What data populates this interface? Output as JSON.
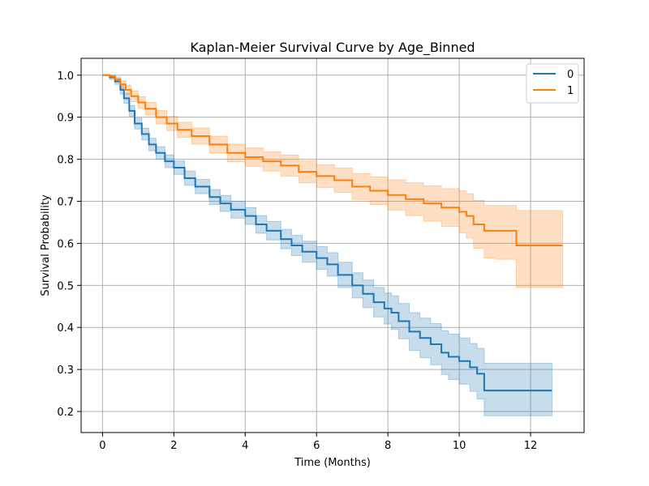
{
  "chart_data": {
    "type": "line",
    "title": "Kaplan-Meier Survival Curve by Age_Binned",
    "xlabel": "Time (Months)",
    "ylabel": "Survival Probability",
    "xlim": [
      -0.6,
      13.5
    ],
    "ylim": [
      0.15,
      1.04
    ],
    "xticks": [
      0,
      2,
      4,
      6,
      8,
      10,
      12
    ],
    "xtick_labels": [
      "0",
      "2",
      "4",
      "6",
      "8",
      "10",
      "12"
    ],
    "yticks": [
      0.2,
      0.3,
      0.4,
      0.5,
      0.6,
      0.7,
      0.8,
      0.9,
      1.0
    ],
    "ytick_labels": [
      "0.2",
      "0.3",
      "0.4",
      "0.5",
      "0.6",
      "0.7",
      "0.8",
      "0.9",
      "1.0"
    ],
    "grid": true,
    "legend_position": "top-right",
    "series": [
      {
        "name": "0",
        "color": "#1f77b4",
        "band_color": "#1f77b4",
        "x": [
          0,
          0.2,
          0.35,
          0.5,
          0.6,
          0.75,
          0.9,
          1.1,
          1.3,
          1.5,
          1.75,
          2.0,
          2.3,
          2.6,
          3.0,
          3.3,
          3.6,
          4.0,
          4.3,
          4.6,
          5.0,
          5.3,
          5.6,
          6.0,
          6.3,
          6.6,
          7.0,
          7.3,
          7.6,
          7.9,
          8.1,
          8.3,
          8.6,
          8.9,
          9.2,
          9.5,
          9.7,
          10.0,
          10.3,
          10.5,
          10.7,
          11.0,
          12.0,
          12.6
        ],
        "y": [
          1.0,
          0.995,
          0.985,
          0.965,
          0.945,
          0.915,
          0.885,
          0.86,
          0.835,
          0.815,
          0.795,
          0.78,
          0.755,
          0.735,
          0.71,
          0.695,
          0.68,
          0.665,
          0.645,
          0.63,
          0.61,
          0.595,
          0.58,
          0.565,
          0.55,
          0.525,
          0.5,
          0.48,
          0.46,
          0.445,
          0.435,
          0.415,
          0.39,
          0.375,
          0.36,
          0.34,
          0.33,
          0.32,
          0.305,
          0.29,
          0.25,
          0.25,
          0.25,
          0.25
        ],
        "lower": [
          1.0,
          0.99,
          0.978,
          0.955,
          0.933,
          0.902,
          0.872,
          0.846,
          0.82,
          0.8,
          0.78,
          0.764,
          0.738,
          0.718,
          0.692,
          0.676,
          0.66,
          0.645,
          0.624,
          0.608,
          0.587,
          0.571,
          0.555,
          0.538,
          0.522,
          0.495,
          0.47,
          0.447,
          0.425,
          0.408,
          0.395,
          0.373,
          0.345,
          0.328,
          0.311,
          0.288,
          0.276,
          0.265,
          0.248,
          0.23,
          0.19,
          0.19,
          0.19,
          0.19
        ],
        "upper": [
          1.0,
          0.999,
          0.992,
          0.975,
          0.957,
          0.928,
          0.898,
          0.874,
          0.85,
          0.83,
          0.81,
          0.796,
          0.772,
          0.752,
          0.728,
          0.714,
          0.7,
          0.685,
          0.666,
          0.652,
          0.633,
          0.619,
          0.605,
          0.592,
          0.578,
          0.555,
          0.53,
          0.513,
          0.495,
          0.482,
          0.475,
          0.457,
          0.435,
          0.422,
          0.409,
          0.392,
          0.384,
          0.375,
          0.362,
          0.35,
          0.315,
          0.315,
          0.315,
          0.315
        ]
      },
      {
        "name": "1",
        "color": "#ff7f0e",
        "band_color": "#ff7f0e",
        "x": [
          0,
          0.2,
          0.35,
          0.5,
          0.65,
          0.8,
          1.0,
          1.2,
          1.5,
          1.8,
          2.1,
          2.5,
          3.0,
          3.5,
          4.0,
          4.5,
          5.0,
          5.5,
          6.0,
          6.5,
          7.0,
          7.5,
          8.0,
          8.5,
          9.0,
          9.5,
          10.0,
          10.2,
          10.4,
          10.7,
          11.0,
          11.3,
          11.6,
          12.0,
          12.9
        ],
        "y": [
          1.0,
          0.997,
          0.99,
          0.978,
          0.965,
          0.95,
          0.935,
          0.92,
          0.9,
          0.885,
          0.87,
          0.855,
          0.835,
          0.815,
          0.805,
          0.795,
          0.785,
          0.77,
          0.76,
          0.75,
          0.735,
          0.725,
          0.715,
          0.705,
          0.695,
          0.685,
          0.675,
          0.665,
          0.645,
          0.63,
          0.63,
          0.63,
          0.595,
          0.595,
          0.595
        ],
        "lower": [
          1.0,
          0.993,
          0.983,
          0.969,
          0.954,
          0.937,
          0.921,
          0.905,
          0.884,
          0.868,
          0.852,
          0.836,
          0.815,
          0.794,
          0.783,
          0.772,
          0.76,
          0.744,
          0.733,
          0.721,
          0.704,
          0.692,
          0.679,
          0.666,
          0.653,
          0.64,
          0.625,
          0.612,
          0.588,
          0.565,
          0.562,
          0.562,
          0.495,
          0.495,
          0.495
        ],
        "upper": [
          1.0,
          1.0,
          0.996,
          0.987,
          0.976,
          0.963,
          0.949,
          0.935,
          0.916,
          0.902,
          0.888,
          0.874,
          0.855,
          0.836,
          0.827,
          0.818,
          0.81,
          0.796,
          0.787,
          0.779,
          0.766,
          0.758,
          0.751,
          0.744,
          0.737,
          0.73,
          0.725,
          0.718,
          0.702,
          0.69,
          0.69,
          0.69,
          0.678,
          0.678,
          0.678
        ]
      }
    ]
  }
}
